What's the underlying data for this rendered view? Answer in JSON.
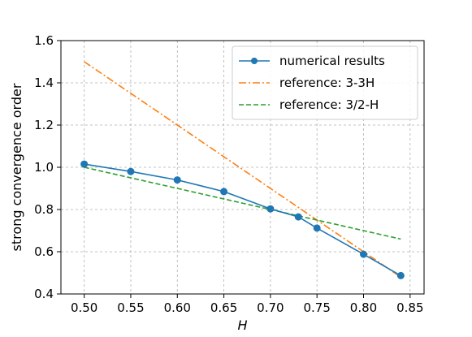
{
  "chart_data": {
    "type": "line",
    "title": "",
    "xlabel": "H",
    "ylabel": "strong convergence order",
    "xlim": [
      0.475,
      0.865
    ],
    "ylim": [
      0.4,
      1.6
    ],
    "xticks": [
      "0.50",
      "0.55",
      "0.60",
      "0.65",
      "0.70",
      "0.75",
      "0.80",
      "0.85"
    ],
    "yticks": [
      "0.4",
      "0.6",
      "0.8",
      "1.0",
      "1.2",
      "1.4",
      "1.6"
    ],
    "grid": true,
    "legend_position": "top-right",
    "series": [
      {
        "name": "numerical results",
        "color": "#1f77b4",
        "style": "solid-marker",
        "x": [
          0.5,
          0.55,
          0.6,
          0.65,
          0.7,
          0.73,
          0.75,
          0.8,
          0.84
        ],
        "y": [
          1.015,
          0.98,
          0.94,
          0.885,
          0.803,
          0.765,
          0.712,
          0.588,
          0.487
        ]
      },
      {
        "name": "reference: 3-3H",
        "color": "#ff7f0e",
        "style": "dashdot",
        "x": [
          0.5,
          0.84
        ],
        "y": [
          1.5,
          0.48
        ]
      },
      {
        "name": "reference: 3/2-H",
        "color": "#2ca02c",
        "style": "dashed",
        "x": [
          0.5,
          0.84
        ],
        "y": [
          1.0,
          0.66
        ]
      }
    ]
  }
}
